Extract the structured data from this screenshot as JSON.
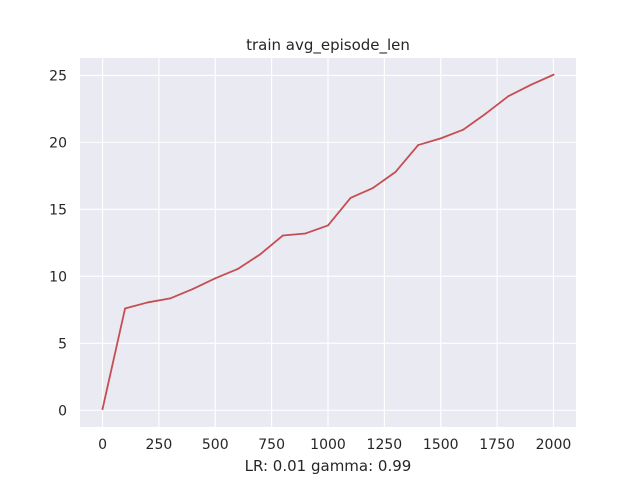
{
  "chart_data": {
    "type": "line",
    "title": "train avg_episode_len",
    "xlabel": "LR: 0.01 gamma: 0.99",
    "ylabel": "",
    "xlim": [
      -100,
      2100
    ],
    "ylim": [
      -1.25,
      26.3
    ],
    "grid": true,
    "x_ticks": [
      0,
      250,
      500,
      750,
      1000,
      1250,
      1500,
      1750,
      2000
    ],
    "y_ticks": [
      0,
      5,
      10,
      15,
      20,
      25
    ],
    "x_tick_labels": [
      "0",
      "250",
      "500",
      "750",
      "1000",
      "1250",
      "1500",
      "1750",
      "2000"
    ],
    "y_tick_labels": [
      "0",
      "5",
      "10",
      "15",
      "20",
      "25"
    ],
    "series": [
      {
        "color": "#c44e52",
        "x": [
          0,
          100,
          200,
          300,
          400,
          500,
          600,
          700,
          800,
          900,
          1000,
          1100,
          1200,
          1300,
          1400,
          1500,
          1600,
          1700,
          1800,
          1900,
          2000
        ],
        "y": [
          0.1,
          7.6,
          8.05,
          8.35,
          9.05,
          9.85,
          10.55,
          11.65,
          13.05,
          13.2,
          13.8,
          15.85,
          16.6,
          17.8,
          19.8,
          20.3,
          20.95,
          22.15,
          23.45,
          24.3,
          25.05
        ]
      }
    ]
  }
}
